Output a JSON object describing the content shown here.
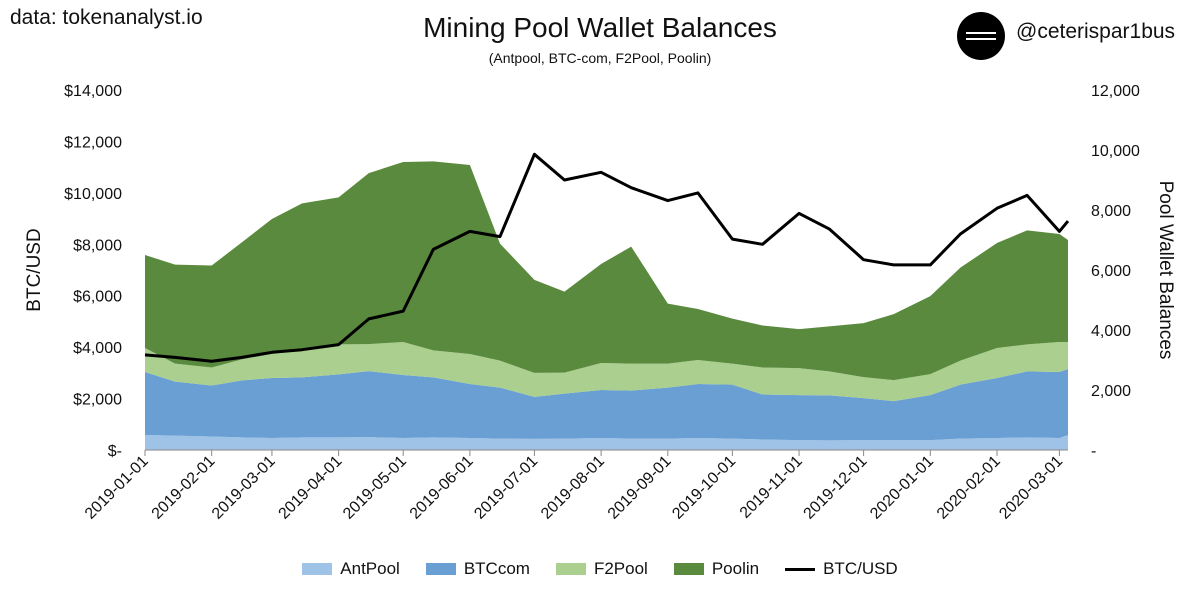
{
  "header": {
    "source": "data: tokenanalyst.io",
    "title": "Mining Pool Wallet Balances",
    "subtitle": "(Antpool, BTC-com, F2Pool, Poolin)",
    "handle": "@ceterispar1bus"
  },
  "colors": {
    "antpool": "#9fc3e6",
    "btccom": "#6a9fd3",
    "f2pool": "#aacf8e",
    "poolin": "#5a8a3e",
    "btcusd": "#000000"
  },
  "chart_data": {
    "type": "area",
    "title": "Mining Pool Wallet Balances",
    "subtitle": "(Antpool, BTC-com, F2Pool, Poolin)",
    "stacked": true,
    "left_axis": {
      "label": "BTC/USD",
      "range": [
        0,
        14000
      ],
      "ticks": [
        0,
        2000,
        4000,
        6000,
        8000,
        10000,
        12000,
        14000
      ],
      "tick_labels": [
        "$-",
        "$2,000",
        "$4,000",
        "$6,000",
        "$8,000",
        "$10,000",
        "$12,000",
        "$14,000"
      ]
    },
    "right_axis": {
      "label": "Pool Wallet Balances",
      "range": [
        0,
        12000
      ],
      "ticks": [
        0,
        2000,
        4000,
        6000,
        8000,
        10000,
        12000
      ],
      "tick_labels": [
        "-",
        "2,000",
        "4,000",
        "6,000",
        "8,000",
        "10,000",
        "12,000"
      ]
    },
    "x_tick_labels": [
      "2019-01-01",
      "2019-02-01",
      "2019-03-01",
      "2019-04-01",
      "2019-05-01",
      "2019-06-01",
      "2019-07-01",
      "2019-08-01",
      "2019-09-01",
      "2019-10-01",
      "2019-11-01",
      "2019-12-01",
      "2020-01-01",
      "2020-02-01",
      "2020-03-01"
    ],
    "x_range": [
      "2019-01-01",
      "2020-03-05"
    ],
    "grid": false,
    "legend_position": "bottom",
    "x": [
      "2019-01-01",
      "2019-01-15",
      "2019-02-01",
      "2019-02-15",
      "2019-03-01",
      "2019-03-15",
      "2019-04-01",
      "2019-04-15",
      "2019-05-01",
      "2019-05-15",
      "2019-06-01",
      "2019-06-15",
      "2019-07-01",
      "2019-07-15",
      "2019-08-01",
      "2019-08-15",
      "2019-09-01",
      "2019-09-15",
      "2019-10-01",
      "2019-10-15",
      "2019-11-01",
      "2019-11-15",
      "2019-12-01",
      "2019-12-15",
      "2020-01-01",
      "2020-01-15",
      "2020-02-01",
      "2020-02-15",
      "2020-03-01",
      "2020-03-05"
    ],
    "series": [
      {
        "name": "AntPool",
        "axis": "right",
        "values": [
          500,
          480,
          450,
          420,
          400,
          420,
          420,
          430,
          400,
          420,
          400,
          380,
          370,
          380,
          400,
          380,
          380,
          400,
          380,
          350,
          330,
          320,
          330,
          330,
          330,
          380,
          400,
          420,
          400,
          500
        ]
      },
      {
        "name": "BTCcom",
        "axis": "right",
        "values": [
          2100,
          1800,
          1700,
          1900,
          2000,
          2000,
          2100,
          2200,
          2100,
          2000,
          1800,
          1700,
          1400,
          1500,
          1600,
          1600,
          1700,
          1800,
          1800,
          1500,
          1500,
          1500,
          1400,
          1300,
          1500,
          1800,
          2000,
          2200,
          2200,
          2200
        ]
      },
      {
        "name": "F2Pool",
        "axis": "right",
        "values": [
          800,
          600,
          600,
          700,
          800,
          900,
          1000,
          900,
          1100,
          900,
          1000,
          900,
          800,
          700,
          900,
          900,
          800,
          800,
          700,
          900,
          900,
          800,
          700,
          700,
          700,
          800,
          1000,
          900,
          1000,
          900
        ]
      },
      {
        "name": "Poolin",
        "axis": "right",
        "values": [
          3100,
          3300,
          3400,
          3900,
          4500,
          4900,
          4900,
          5700,
          6000,
          6300,
          6300,
          3900,
          3100,
          2700,
          3300,
          3900,
          2000,
          1700,
          1500,
          1400,
          1300,
          1500,
          1800,
          2200,
          2600,
          3100,
          3500,
          3800,
          3600,
          3400
        ]
      },
      {
        "name": "BTC/USD",
        "axis": "left",
        "type": "line",
        "values": [
          3700,
          3600,
          3450,
          3600,
          3800,
          3900,
          4100,
          5100,
          5400,
          7800,
          8500,
          8300,
          11500,
          10500,
          10800,
          10200,
          9700,
          10000,
          8200,
          8000,
          9200,
          8600,
          7400,
          7200,
          7200,
          8400,
          9400,
          9900,
          8500,
          8900
        ]
      }
    ]
  },
  "legend": [
    {
      "label": "AntPool",
      "color": "#9fc3e6",
      "kind": "area"
    },
    {
      "label": "BTCcom",
      "color": "#6a9fd3",
      "kind": "area"
    },
    {
      "label": "F2Pool",
      "color": "#aacf8e",
      "kind": "area"
    },
    {
      "label": "Poolin",
      "color": "#5a8a3e",
      "kind": "area"
    },
    {
      "label": "BTC/USD",
      "color": "#000000",
      "kind": "line"
    }
  ]
}
